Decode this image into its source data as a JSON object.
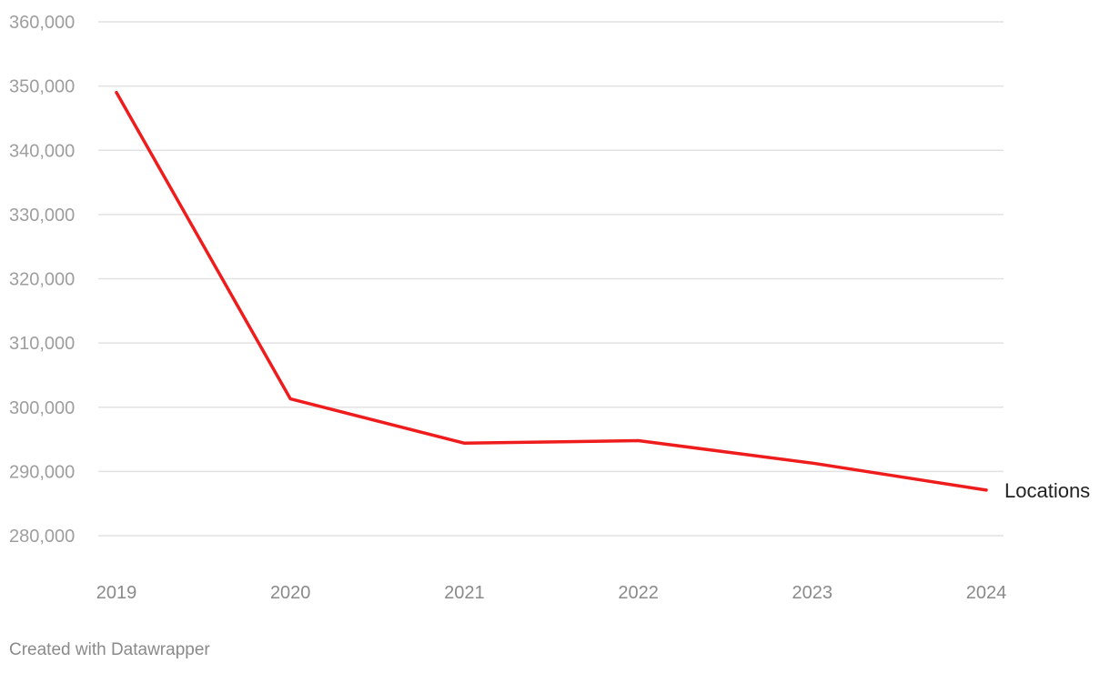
{
  "chart_data": {
    "type": "line",
    "x": [
      "2019",
      "2020",
      "2021",
      "2022",
      "2023",
      "2024"
    ],
    "series": [
      {
        "name": "Locations",
        "values": [
          349000,
          301300,
          294400,
          294800,
          291300,
          287100
        ],
        "color": "#ee1c1c"
      }
    ],
    "yticks": [
      "280,000",
      "290,000",
      "300,000",
      "310,000",
      "320,000",
      "330,000",
      "340,000",
      "350,000",
      "360,000"
    ],
    "ylim": [
      280000,
      360000
    ],
    "grid": true,
    "legend": "inline-end-label"
  },
  "footer": {
    "credit": "Created with Datawrapper"
  }
}
